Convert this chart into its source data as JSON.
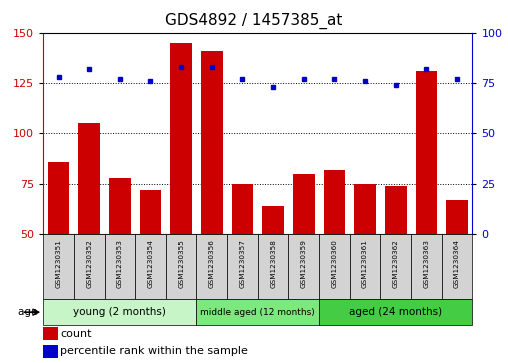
{
  "title": "GDS4892 / 1457385_at",
  "samples": [
    "GSM1230351",
    "GSM1230352",
    "GSM1230353",
    "GSM1230354",
    "GSM1230355",
    "GSM1230356",
    "GSM1230357",
    "GSM1230358",
    "GSM1230359",
    "GSM1230360",
    "GSM1230361",
    "GSM1230362",
    "GSM1230363",
    "GSM1230364"
  ],
  "counts": [
    86,
    105,
    78,
    72,
    145,
    141,
    75,
    64,
    80,
    82,
    75,
    74,
    131,
    67
  ],
  "percentile_ranks": [
    78,
    82,
    77,
    76,
    83,
    83,
    77,
    73,
    77,
    77,
    76,
    74,
    82,
    77
  ],
  "bar_color": "#cc0000",
  "dot_color": "#0000cc",
  "ylim_left": [
    50,
    150
  ],
  "ylim_right": [
    0,
    100
  ],
  "yticks_left": [
    50,
    75,
    100,
    125,
    150
  ],
  "yticks_right": [
    0,
    25,
    50,
    75,
    100
  ],
  "group_colors": [
    "#c8f5c8",
    "#7de87d",
    "#44cc44"
  ],
  "groups": [
    {
      "label": "young (2 months)",
      "start": 0,
      "end": 5
    },
    {
      "label": "middle aged (12 months)",
      "start": 5,
      "end": 9
    },
    {
      "label": "aged (24 months)",
      "start": 9,
      "end": 14
    }
  ],
  "legend_count_label": "count",
  "legend_pct_label": "percentile rank within the sample",
  "title_fontsize": 11,
  "bar_width": 0.7
}
